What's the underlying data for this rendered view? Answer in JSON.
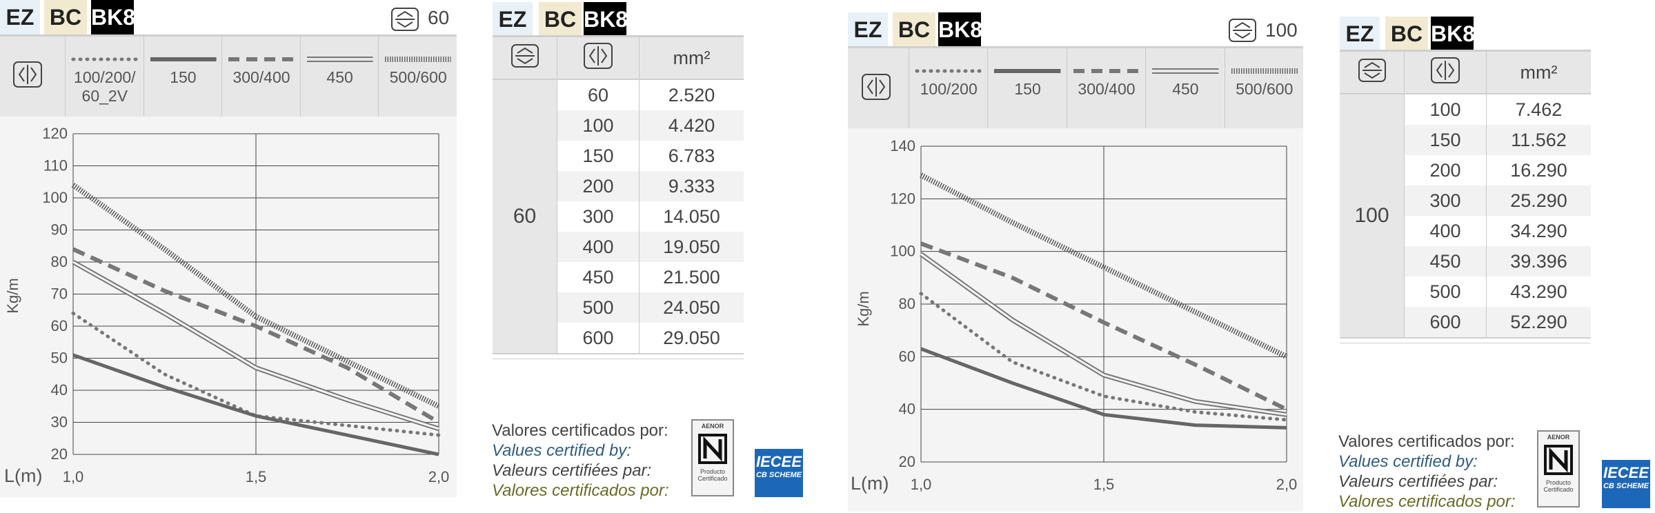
{
  "badges": {
    "ez": "EZ",
    "bc": "BC",
    "bk": "BK8"
  },
  "panel1": {
    "height_label": "60",
    "legend": [
      {
        "label": "100/200/\n60_2V",
        "style": "dotted"
      },
      {
        "label": "150",
        "style": "solid"
      },
      {
        "label": "300/400",
        "style": "dashed"
      },
      {
        "label": "450",
        "style": "double"
      },
      {
        "label": "500/600",
        "style": "hatched"
      }
    ],
    "table": {
      "header_unit": "mm²",
      "group": "60",
      "rows": [
        [
          "100",
          "4.420"
        ],
        [
          "150",
          "6.783"
        ],
        [
          "200",
          "9.333"
        ],
        [
          "300",
          "14.050"
        ],
        [
          "400",
          "19.050"
        ],
        [
          "450",
          "21.500"
        ],
        [
          "500",
          "24.050"
        ],
        [
          "600",
          "29.050"
        ]
      ],
      "first_row": [
        "60",
        "2.520"
      ]
    }
  },
  "panel2": {
    "height_label": "100",
    "legend": [
      {
        "label": "100/200",
        "style": "dotted"
      },
      {
        "label": "150",
        "style": "solid"
      },
      {
        "label": "300/400",
        "style": "dashed"
      },
      {
        "label": "450",
        "style": "double"
      },
      {
        "label": "500/600",
        "style": "hatched"
      }
    ],
    "table": {
      "header_unit": "mm²",
      "group": "100",
      "rows": [
        [
          "100",
          "7.462"
        ],
        [
          "150",
          "11.562"
        ],
        [
          "200",
          "16.290"
        ],
        [
          "300",
          "25.290"
        ],
        [
          "400",
          "34.290"
        ],
        [
          "450",
          "39.396"
        ],
        [
          "500",
          "43.290"
        ],
        [
          "600",
          "52.290"
        ]
      ]
    }
  },
  "cert": {
    "es": "Valores certificados por:",
    "en": "Values certified by:",
    "fr": "Valeurs certifiées par:",
    "pt": "Valores certificados por:",
    "aenor_top": "AENOR",
    "aenor_bottom": "Producto Certificado",
    "iecee_top": "IECEE",
    "iecee_bottom": "CB SCHEME"
  },
  "chart_data": [
    {
      "type": "line",
      "title": "",
      "xlabel": "L(m)",
      "ylabel": "Kg/m",
      "xlim": [
        1.0,
        2.0
      ],
      "ylim": [
        20,
        120
      ],
      "x_ticks": [
        "1,0",
        "1,5",
        "2,0"
      ],
      "y_ticks": [
        "20",
        "30",
        "40",
        "50",
        "60",
        "70",
        "80",
        "90",
        "100",
        "110",
        "120"
      ],
      "grid": true,
      "series": [
        {
          "name": "100/200/60_2V",
          "style": "dotted",
          "x": [
            1.0,
            1.25,
            1.5,
            1.75,
            2.0
          ],
          "y": [
            64,
            45,
            32,
            29,
            26
          ]
        },
        {
          "name": "150",
          "style": "solid",
          "x": [
            1.0,
            1.25,
            1.5,
            1.75,
            2.0
          ],
          "y": [
            51,
            41,
            32,
            26,
            20
          ]
        },
        {
          "name": "300/400",
          "style": "dashed",
          "x": [
            1.0,
            1.25,
            1.5,
            1.75,
            2.0
          ],
          "y": [
            84,
            71,
            60,
            47,
            30
          ]
        },
        {
          "name": "450",
          "style": "double",
          "x": [
            1.0,
            1.25,
            1.5,
            1.75,
            2.0
          ],
          "y": [
            80,
            64,
            47,
            37,
            28
          ]
        },
        {
          "name": "500/600",
          "style": "hatched",
          "x": [
            1.0,
            1.25,
            1.5,
            1.75,
            2.0
          ],
          "y": [
            104,
            84,
            63,
            49,
            35
          ]
        }
      ]
    },
    {
      "type": "line",
      "title": "",
      "xlabel": "L(m)",
      "ylabel": "Kg/m",
      "xlim": [
        1.0,
        2.0
      ],
      "ylim": [
        20,
        140
      ],
      "x_ticks": [
        "1,0",
        "1,5",
        "2,0"
      ],
      "y_ticks": [
        "20",
        "40",
        "60",
        "80",
        "100",
        "120",
        "140"
      ],
      "grid": true,
      "series": [
        {
          "name": "100/200",
          "style": "dotted",
          "x": [
            1.0,
            1.25,
            1.5,
            1.75,
            2.0
          ],
          "y": [
            84,
            58,
            45,
            39,
            36
          ]
        },
        {
          "name": "150",
          "style": "solid",
          "x": [
            1.0,
            1.25,
            1.5,
            1.75,
            2.0
          ],
          "y": [
            63,
            50,
            38,
            34,
            33
          ]
        },
        {
          "name": "300/400",
          "style": "dashed",
          "x": [
            1.0,
            1.25,
            1.5,
            1.75,
            2.0
          ],
          "y": [
            103,
            90,
            73,
            57,
            40
          ]
        },
        {
          "name": "450",
          "style": "double",
          "x": [
            1.0,
            1.25,
            1.5,
            1.75,
            2.0
          ],
          "y": [
            99,
            74,
            53,
            43,
            38
          ]
        },
        {
          "name": "500/600",
          "style": "hatched",
          "x": [
            1.0,
            1.25,
            1.5,
            1.75,
            2.0
          ],
          "y": [
            129,
            111,
            94,
            77,
            60
          ]
        }
      ]
    }
  ]
}
